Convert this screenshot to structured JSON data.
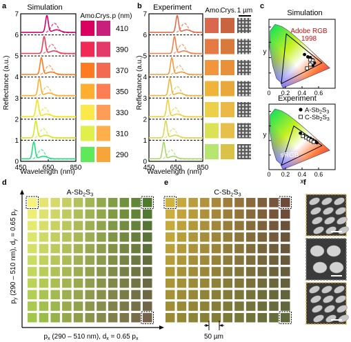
{
  "panels": {
    "a": {
      "label": "a",
      "title": "Simulation",
      "ylabel": "Reflectance (a.u.)",
      "xlabel": "Wavelength (nm)",
      "xticks": [
        "450",
        "650",
        "850"
      ],
      "yticks": [
        "0",
        "1",
        "2",
        "3",
        "4",
        "5",
        "6",
        "7"
      ],
      "col_amo": "Amo.",
      "col_crys": "Crys.",
      "col_p": "p (nm)"
    },
    "b": {
      "label": "b",
      "title": "Experiment",
      "ylabel": "Reflectance (a.u.)",
      "xlabel": "Wavelength (nm)",
      "xticks": [
        "450",
        "650",
        "850"
      ],
      "yticks": [
        "0",
        "1",
        "2",
        "3",
        "4",
        "5",
        "6",
        "7"
      ],
      "col_amo": "Amo.",
      "col_crys": "Crys.",
      "scale": "1 µm"
    },
    "c": {
      "label": "c",
      "title": "Simulation",
      "subtitle2": "Experiment",
      "adobe_label": "Adobe RGB",
      "adobe_year": "1998",
      "srgb_label": "sRGB",
      "legend_a": "A-Sb2S3",
      "legend_c": "C-Sb2S3",
      "xlabel": "x",
      "ylabel": "y",
      "xticks": [
        "0",
        "0.2",
        "0.4",
        "0.6"
      ],
      "yticks": [
        "0",
        "0.2",
        "0.4",
        "0.6",
        "0.8"
      ]
    },
    "d": {
      "label": "d",
      "title": "A-Sb2S3",
      "ylabel": "py (290 – 510 nm), dy = 0.65 py",
      "xlabel": "px (290 – 510 nm), dx = 0.65 px"
    },
    "e": {
      "label": "e",
      "title": "C-Sb2S3",
      "scale": "50 µm"
    },
    "f": {
      "label": "f"
    }
  },
  "chart_data": [
    {
      "type": "line",
      "panel": "a",
      "title": "Simulation",
      "xlabel": "Wavelength (nm)",
      "ylabel": "Reflectance (a.u.)",
      "xlim": [
        450,
        850
      ],
      "ylim": [
        0,
        7
      ],
      "series": [
        {
          "name": "410",
          "peak_nm": 640,
          "offset": 6,
          "color": "#d4006a"
        },
        {
          "name": "390",
          "peak_nm": 620,
          "offset": 5,
          "color": "#f03a56"
        },
        {
          "name": "370",
          "peak_nm": 600,
          "offset": 4,
          "color": "#ff7a1a"
        },
        {
          "name": "350",
          "peak_nm": 585,
          "offset": 3,
          "color": "#ffae2a"
        },
        {
          "name": "330",
          "peak_nm": 570,
          "offset": 2,
          "color": "#f7e01c"
        },
        {
          "name": "310",
          "peak_nm": 560,
          "offset": 1,
          "color": "#d6e81e"
        },
        {
          "name": "290",
          "peak_nm": 545,
          "offset": 0,
          "color": "#1fe07a"
        }
      ],
      "swatches": [
        {
          "p": "410",
          "amo": "#d9005f",
          "crys": "#c8207a"
        },
        {
          "p": "390",
          "amo": "#f02a55",
          "crys": "#e43a6a"
        },
        {
          "p": "370",
          "amo": "#ff7a20",
          "crys": "#f36a52"
        },
        {
          "p": "350",
          "amo": "#ffae30",
          "crys": "#fd7e52"
        },
        {
          "p": "330",
          "amo": "#fbe84a",
          "crys": "#ff9c55"
        },
        {
          "p": "310",
          "amo": "#e1ef4a",
          "crys": "#ffb04c"
        },
        {
          "p": "290",
          "amo": "#5ee85a",
          "crys": "#f6a53a"
        }
      ]
    },
    {
      "type": "line",
      "panel": "b",
      "title": "Experiment",
      "xlabel": "Wavelength (nm)",
      "ylabel": "Reflectance (a.u.)",
      "xlim": [
        450,
        850
      ],
      "ylim": [
        0,
        7
      ],
      "series": [
        {
          "peak_nm": 660,
          "offset": 6,
          "color": "#e26a4a"
        },
        {
          "peak_nm": 640,
          "offset": 5,
          "color": "#f08048"
        },
        {
          "peak_nm": 620,
          "offset": 4,
          "color": "#f29a3c"
        },
        {
          "peak_nm": 605,
          "offset": 3,
          "color": "#f0b43a"
        },
        {
          "peak_nm": 590,
          "offset": 2,
          "color": "#f0cf3e"
        },
        {
          "peak_nm": 575,
          "offset": 1,
          "color": "#d9d84e"
        },
        {
          "peak_nm": 560,
          "offset": 0,
          "color": "#a9d86a"
        }
      ],
      "swatches": [
        {
          "amo": "#d9684e",
          "crys": "#c96440"
        },
        {
          "amo": "#e67a44",
          "crys": "#d77a3c"
        },
        {
          "amo": "#f1963c",
          "crys": "#e8913a"
        },
        {
          "amo": "#f0b43a",
          "crys": "#e8a83c"
        },
        {
          "amo": "#edd04a",
          "crys": "#eab946"
        },
        {
          "amo": "#dbe256",
          "crys": "#e6c04a"
        },
        {
          "amo": "#b7e670",
          "crys": "#d8c248"
        }
      ]
    },
    {
      "type": "scatter",
      "panel": "c-top",
      "title": "Simulation",
      "xlabel": "x",
      "ylabel": "y",
      "xlim": [
        0,
        0.8
      ],
      "ylim": [
        0,
        0.9
      ],
      "points": [
        {
          "x": 0.43,
          "y": 0.44,
          "filled": true
        },
        {
          "x": 0.47,
          "y": 0.41,
          "filled": true
        },
        {
          "x": 0.5,
          "y": 0.4,
          "filled": true
        },
        {
          "x": 0.53,
          "y": 0.37,
          "filled": true
        },
        {
          "x": 0.55,
          "y": 0.33,
          "filled": true
        },
        {
          "x": 0.53,
          "y": 0.3,
          "filled": true
        },
        {
          "x": 0.5,
          "y": 0.37,
          "filled": false
        },
        {
          "x": 0.53,
          "y": 0.36,
          "filled": false
        },
        {
          "x": 0.52,
          "y": 0.33,
          "filled": false
        },
        {
          "x": 0.5,
          "y": 0.31,
          "filled": false
        },
        {
          "x": 0.46,
          "y": 0.26,
          "filled": false
        }
      ]
    },
    {
      "type": "scatter",
      "panel": "c-bottom",
      "title": "Experiment",
      "xlabel": "x",
      "ylabel": "y",
      "xlim": [
        0,
        0.8
      ],
      "ylim": [
        0,
        0.9
      ],
      "points": [
        {
          "x": 0.38,
          "y": 0.5,
          "filled": true
        },
        {
          "x": 0.42,
          "y": 0.47,
          "filled": true
        },
        {
          "x": 0.46,
          "y": 0.45,
          "filled": true
        },
        {
          "x": 0.5,
          "y": 0.43,
          "filled": true
        },
        {
          "x": 0.53,
          "y": 0.41,
          "filled": true
        },
        {
          "x": 0.56,
          "y": 0.39,
          "filled": true
        },
        {
          "x": 0.58,
          "y": 0.37,
          "filled": true
        },
        {
          "x": 0.41,
          "y": 0.46,
          "filled": false
        },
        {
          "x": 0.45,
          "y": 0.44,
          "filled": false
        },
        {
          "x": 0.48,
          "y": 0.42,
          "filled": false
        },
        {
          "x": 0.51,
          "y": 0.4,
          "filled": false
        },
        {
          "x": 0.54,
          "y": 0.38,
          "filled": false
        }
      ]
    },
    {
      "type": "heatmap",
      "panel": "d",
      "rows": 11,
      "cols": 11,
      "corners": {
        "top_left": "#f6f27a",
        "top_right": "#4f7a2e",
        "bottom_left": "#a0c64a",
        "bottom_right": "#74624a"
      }
    },
    {
      "type": "heatmap",
      "panel": "e",
      "rows": 11,
      "cols": 11,
      "corners": {
        "top_left": "#d0b23e",
        "top_right": "#6e4a3a",
        "bottom_left": "#9a8a34",
        "bottom_right": "#5f6a3c"
      }
    }
  ]
}
